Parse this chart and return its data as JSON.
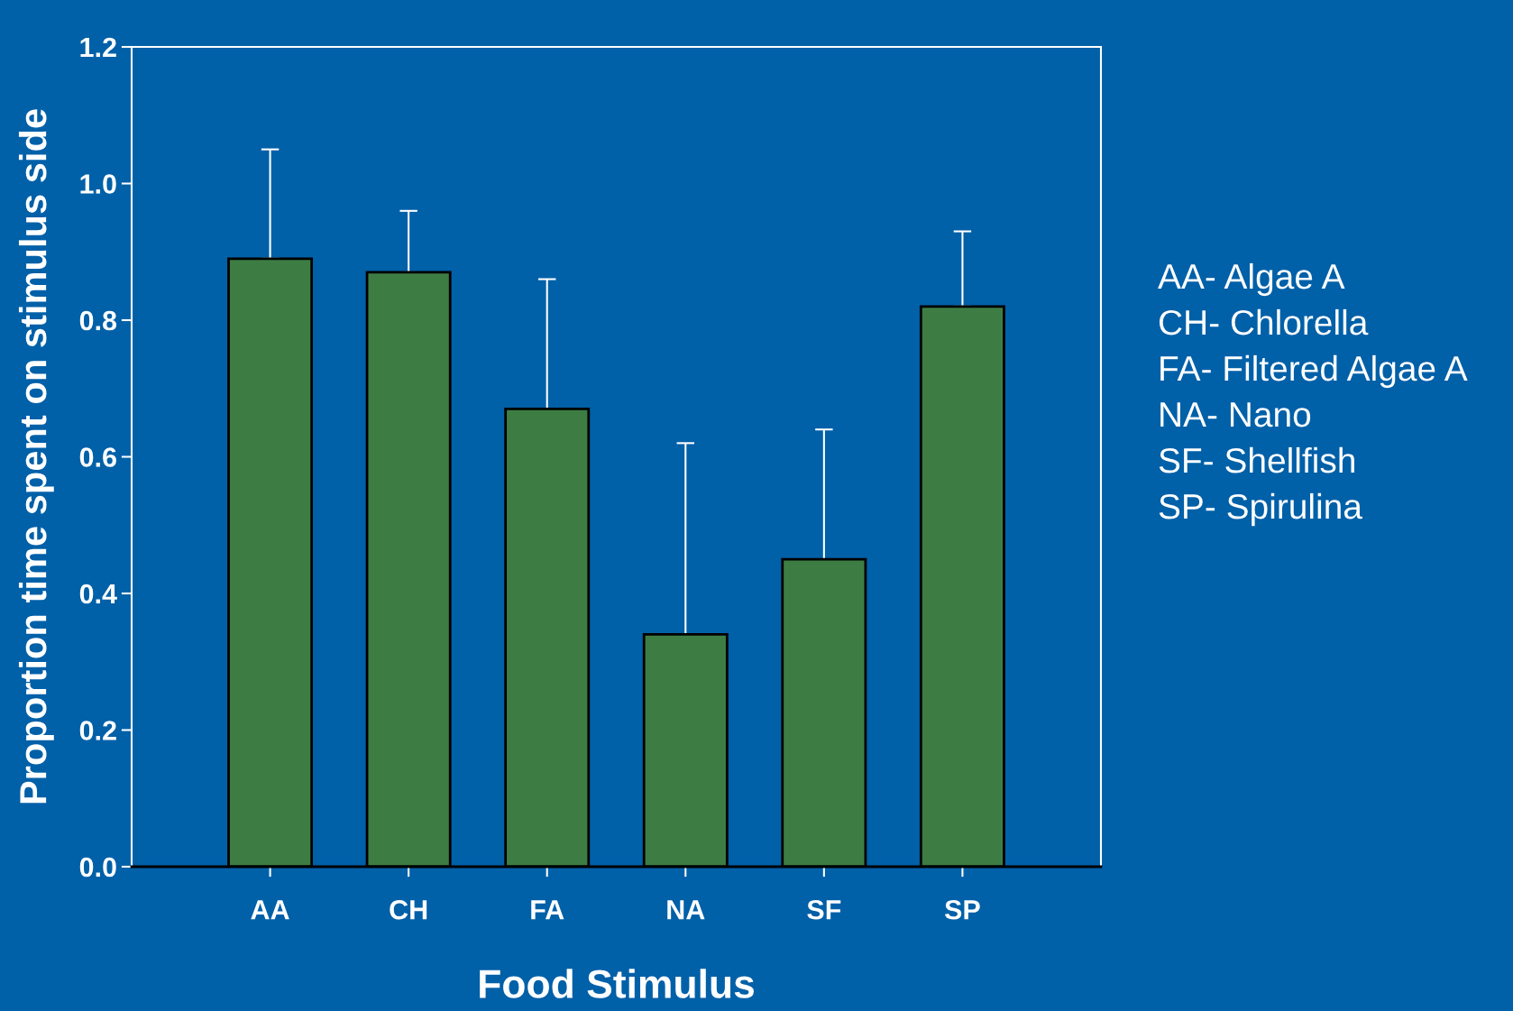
{
  "chart_data": {
    "type": "bar",
    "xlabel": "Food Stimulus",
    "ylabel": "Proportion time spent on stimulus side",
    "categories": [
      "AA",
      "CH",
      "FA",
      "NA",
      "SF",
      "SP"
    ],
    "values": [
      0.89,
      0.87,
      0.67,
      0.34,
      0.45,
      0.82
    ],
    "errors": [
      [
        0.89,
        1.05
      ],
      [
        0.87,
        0.96
      ],
      [
        0.67,
        0.86
      ],
      [
        0.34,
        0.62
      ],
      [
        0.45,
        0.64
      ],
      [
        0.82,
        0.93
      ]
    ],
    "color": "#3d7d44",
    "ylim": [
      0,
      1.2
    ],
    "yticks": [
      {
        "value": 0,
        "label": "0.0"
      },
      {
        "value": 0.2,
        "label": "0.2"
      },
      {
        "value": 0.4,
        "label": "0.4"
      },
      {
        "value": 0.6,
        "label": "0.6"
      },
      {
        "value": 0.8,
        "label": "0.8"
      },
      {
        "value": 1.0,
        "label": "1.0"
      },
      {
        "value": 1.2,
        "label": "1.2"
      }
    ],
    "grid": false,
    "legend": false,
    "annotations": [
      "AA- Algae A",
      "CH- Chlorella",
      "FA- Filtered Algae A",
      "NA- Nano",
      "SF- Shellfish",
      "SP- Spirulina"
    ]
  }
}
